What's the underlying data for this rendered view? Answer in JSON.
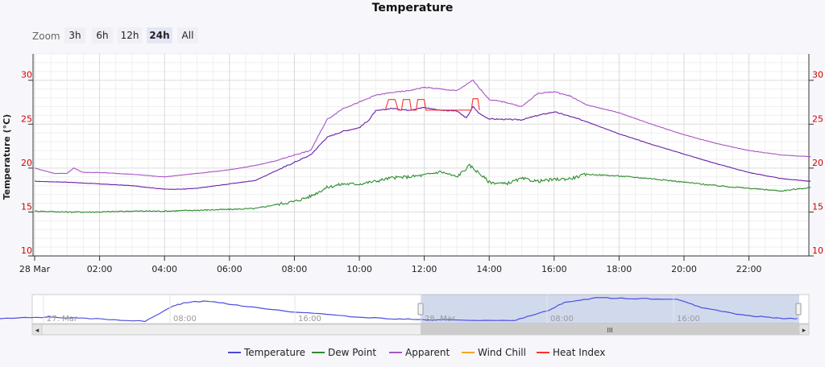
{
  "title": "Temperature",
  "zoom": {
    "label": "Zoom",
    "buttons": [
      "3h",
      "6h",
      "12h",
      "24h",
      "All"
    ],
    "selected": "24h"
  },
  "chart_data": {
    "type": "line",
    "title": "Temperature",
    "ylabel": "Temperature (°C)",
    "xlabel": "",
    "ylim": [
      10,
      33
    ],
    "yticks": [
      10,
      15,
      20,
      25,
      30
    ],
    "x_range_hours": [
      0,
      23.9
    ],
    "xticks": [
      {
        "h": 0,
        "label": "28 Mar"
      },
      {
        "h": 2,
        "label": "02:00"
      },
      {
        "h": 4,
        "label": "04:00"
      },
      {
        "h": 6,
        "label": "06:00"
      },
      {
        "h": 8,
        "label": "08:00"
      },
      {
        "h": 10,
        "label": "10:00"
      },
      {
        "h": 12,
        "label": "12:00"
      },
      {
        "h": 14,
        "label": "14:00"
      },
      {
        "h": 16,
        "label": "16:00"
      },
      {
        "h": 18,
        "label": "18:00"
      },
      {
        "h": 20,
        "label": "20:00"
      },
      {
        "h": 22,
        "label": "22:00"
      }
    ],
    "grid": true,
    "legend_position": "bottom",
    "series": [
      {
        "name": "Temperature",
        "color": "#4a4ad8",
        "draw_color": "#6a1fa8",
        "points": [
          [
            0,
            18.5
          ],
          [
            1,
            18.4
          ],
          [
            2,
            18.2
          ],
          [
            3,
            18.0
          ],
          [
            4,
            17.6
          ],
          [
            4.5,
            17.6
          ],
          [
            5,
            17.7
          ],
          [
            6,
            18.2
          ],
          [
            6.8,
            18.6
          ],
          [
            7.5,
            19.8
          ],
          [
            8.2,
            21.0
          ],
          [
            8.5,
            21.5
          ],
          [
            9,
            23.5
          ],
          [
            9.5,
            24.2
          ],
          [
            10,
            24.6
          ],
          [
            10.3,
            25.5
          ],
          [
            10.5,
            26.5
          ],
          [
            11,
            26.8
          ],
          [
            11.5,
            26.6
          ],
          [
            12,
            26.9
          ],
          [
            12.5,
            26.6
          ],
          [
            13,
            26.5
          ],
          [
            13.3,
            25.7
          ],
          [
            13.5,
            27.0
          ],
          [
            13.7,
            26.2
          ],
          [
            14,
            25.6
          ],
          [
            15,
            25.5
          ],
          [
            15.5,
            26.0
          ],
          [
            16,
            26.4
          ],
          [
            16.3,
            26.1
          ],
          [
            17,
            25.3
          ],
          [
            18,
            23.9
          ],
          [
            19,
            22.7
          ],
          [
            20,
            21.6
          ],
          [
            21,
            20.5
          ],
          [
            22,
            19.5
          ],
          [
            23,
            18.8
          ],
          [
            23.9,
            18.5
          ]
        ]
      },
      {
        "name": "Dew Point",
        "color": "#2e8b2e",
        "draw_color": "#2e8b2e",
        "points": [
          [
            0,
            15.1
          ],
          [
            1,
            15.0
          ],
          [
            2,
            15.0
          ],
          [
            3,
            15.1
          ],
          [
            4,
            15.1
          ],
          [
            5,
            15.2
          ],
          [
            6,
            15.3
          ],
          [
            6.8,
            15.4
          ],
          [
            7.5,
            15.9
          ],
          [
            8,
            16.2
          ],
          [
            8.5,
            16.8
          ],
          [
            9,
            17.8
          ],
          [
            9.5,
            18.2
          ],
          [
            10,
            18.2
          ],
          [
            10.5,
            18.5
          ],
          [
            11,
            18.9
          ],
          [
            11.5,
            19.0
          ],
          [
            12,
            19.2
          ],
          [
            12.5,
            19.6
          ],
          [
            13,
            19.0
          ],
          [
            13.4,
            20.3
          ],
          [
            13.7,
            19.4
          ],
          [
            14,
            18.4
          ],
          [
            14.5,
            18.2
          ],
          [
            15,
            18.8
          ],
          [
            15.5,
            18.5
          ],
          [
            16,
            18.7
          ],
          [
            16.5,
            18.8
          ],
          [
            17,
            19.3
          ],
          [
            18,
            19.1
          ],
          [
            19,
            18.8
          ],
          [
            20,
            18.4
          ],
          [
            21,
            18.0
          ],
          [
            22,
            17.7
          ],
          [
            23,
            17.4
          ],
          [
            23.9,
            17.8
          ]
        ]
      },
      {
        "name": "Apparent",
        "color": "#a855c7",
        "draw_color": "#a855c7",
        "points": [
          [
            0,
            20.0
          ],
          [
            0.6,
            19.4
          ],
          [
            1,
            19.4
          ],
          [
            1.2,
            20.0
          ],
          [
            1.5,
            19.5
          ],
          [
            2,
            19.5
          ],
          [
            3,
            19.3
          ],
          [
            4,
            19.0
          ],
          [
            5,
            19.4
          ],
          [
            6,
            19.8
          ],
          [
            6.8,
            20.3
          ],
          [
            7.5,
            20.9
          ],
          [
            8,
            21.5
          ],
          [
            8.5,
            22.0
          ],
          [
            9,
            25.5
          ],
          [
            9.5,
            26.8
          ],
          [
            10,
            27.5
          ],
          [
            10.5,
            28.3
          ],
          [
            11,
            28.6
          ],
          [
            11.5,
            28.8
          ],
          [
            12,
            29.2
          ],
          [
            12.5,
            29.0
          ],
          [
            13,
            28.8
          ],
          [
            13.5,
            30.0
          ],
          [
            14,
            27.8
          ],
          [
            14.5,
            27.5
          ],
          [
            15,
            27.0
          ],
          [
            15.5,
            28.5
          ],
          [
            16,
            28.7
          ],
          [
            16.5,
            28.2
          ],
          [
            17,
            27.2
          ],
          [
            18,
            26.3
          ],
          [
            19,
            25.0
          ],
          [
            20,
            23.8
          ],
          [
            21,
            22.8
          ],
          [
            22,
            22.0
          ],
          [
            23,
            21.5
          ],
          [
            23.9,
            21.3
          ]
        ]
      },
      {
        "name": "Wind Chill",
        "color": "#f5a623",
        "draw_color": "#f5a623",
        "points": []
      },
      {
        "name": "Heat Index",
        "color": "#ff3030",
        "draw_color": "#ff3030",
        "points": [
          [
            10.8,
            26.6
          ],
          [
            10.9,
            27.8
          ],
          [
            11.1,
            27.8
          ],
          [
            11.2,
            26.6
          ],
          [
            11.3,
            26.6
          ],
          [
            11.35,
            27.8
          ],
          [
            11.55,
            27.8
          ],
          [
            11.6,
            26.6
          ],
          [
            11.75,
            26.6
          ],
          [
            11.8,
            27.8
          ],
          [
            12.0,
            27.8
          ],
          [
            12.05,
            26.6
          ],
          [
            13.45,
            26.6
          ],
          [
            13.5,
            27.9
          ],
          [
            13.65,
            27.9
          ],
          [
            13.7,
            26.6
          ]
        ]
      }
    ]
  },
  "navigator": {
    "ticks": [
      "27. Mar",
      "08:00",
      "16:00",
      "28. Mar",
      "08:00",
      "16:00"
    ],
    "scrollbar_grip": "III",
    "left_arrow": "◂",
    "right_arrow": "▸"
  }
}
